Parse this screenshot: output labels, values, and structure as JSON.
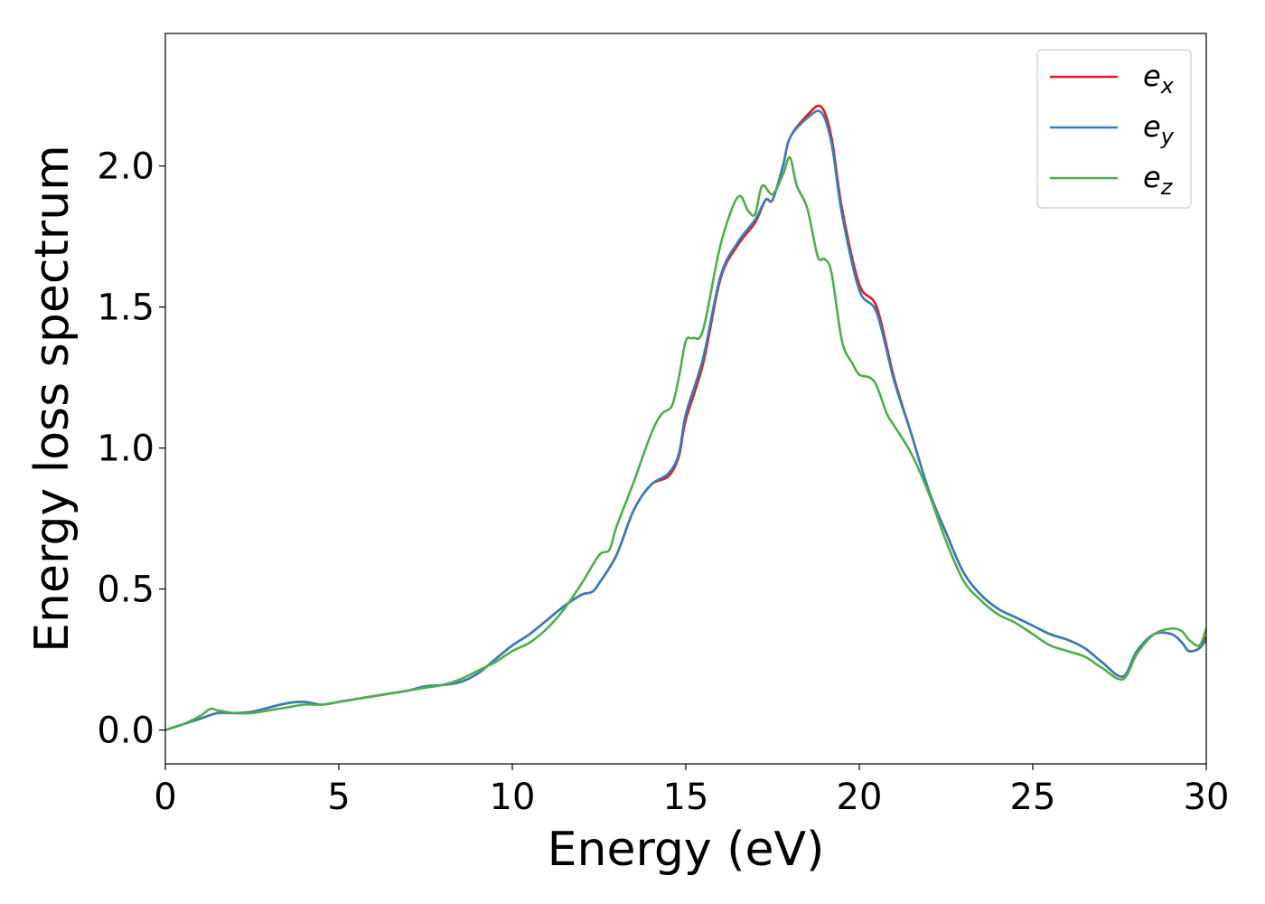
{
  "chart_data": {
    "type": "line",
    "title": "",
    "xlabel": "Energy (eV)",
    "ylabel": "Energy loss spectrum",
    "xlim": [
      0,
      30
    ],
    "ylim": [
      -0.12,
      2.47
    ],
    "xticks": [
      0,
      5,
      10,
      15,
      20,
      25,
      30
    ],
    "yticks": [
      0.0,
      0.5,
      1.0,
      1.5,
      2.0
    ],
    "xtick_labels": [
      "0",
      "5",
      "10",
      "15",
      "20",
      "25",
      "30"
    ],
    "ytick_labels": [
      "0.0",
      "0.5",
      "1.0",
      "1.5",
      "2.0"
    ],
    "grid": false,
    "legend_position": "top-right",
    "series": [
      {
        "name": "e_x",
        "label_base": "e",
        "label_sub": "x",
        "color": "#e41a1c",
        "x": [
          0,
          0.5,
          1.0,
          1.5,
          2.0,
          2.5,
          3.0,
          3.5,
          4.0,
          4.5,
          5.0,
          5.5,
          6.0,
          6.5,
          7.0,
          7.5,
          8.0,
          8.5,
          9.0,
          9.5,
          10.0,
          10.5,
          11.0,
          11.5,
          12.0,
          12.3,
          12.5,
          13.0,
          13.5,
          14.0,
          14.5,
          14.8,
          15.0,
          15.5,
          16.0,
          16.5,
          17.0,
          17.3,
          17.5,
          17.8,
          18.0,
          18.5,
          18.9,
          19.2,
          19.5,
          20.0,
          20.5,
          21.0,
          21.5,
          22.0,
          22.5,
          23.0,
          23.5,
          24.0,
          24.5,
          25.0,
          25.5,
          26.0,
          26.5,
          27.0,
          27.6,
          28.0,
          28.5,
          29.0,
          29.3,
          29.5,
          29.8,
          30.0
        ],
        "y": [
          0,
          0.02,
          0.04,
          0.06,
          0.06,
          0.065,
          0.08,
          0.095,
          0.1,
          0.09,
          0.1,
          0.11,
          0.12,
          0.13,
          0.14,
          0.155,
          0.16,
          0.17,
          0.2,
          0.25,
          0.3,
          0.34,
          0.39,
          0.44,
          0.48,
          0.49,
          0.52,
          0.62,
          0.78,
          0.87,
          0.9,
          0.97,
          1.1,
          1.3,
          1.6,
          1.72,
          1.8,
          1.88,
          1.88,
          2.0,
          2.1,
          2.18,
          2.21,
          2.1,
          1.85,
          1.58,
          1.5,
          1.25,
          1.05,
          0.85,
          0.7,
          0.56,
          0.48,
          0.43,
          0.4,
          0.37,
          0.34,
          0.32,
          0.29,
          0.24,
          0.19,
          0.28,
          0.34,
          0.34,
          0.31,
          0.28,
          0.29,
          0.33
        ]
      },
      {
        "name": "e_y",
        "label_base": "e",
        "label_sub": "y",
        "color": "#377eb8",
        "x": [
          0,
          0.5,
          1.0,
          1.5,
          2.0,
          2.5,
          3.0,
          3.5,
          4.0,
          4.5,
          5.0,
          5.5,
          6.0,
          6.5,
          7.0,
          7.5,
          8.0,
          8.5,
          9.0,
          9.5,
          10.0,
          10.5,
          11.0,
          11.5,
          12.0,
          12.3,
          12.5,
          13.0,
          13.5,
          14.0,
          14.5,
          14.8,
          15.0,
          15.5,
          16.0,
          16.5,
          17.0,
          17.3,
          17.5,
          17.8,
          18.0,
          18.5,
          18.9,
          19.2,
          19.5,
          20.0,
          20.5,
          21.0,
          21.5,
          22.0,
          22.5,
          23.0,
          23.5,
          24.0,
          24.5,
          25.0,
          25.5,
          26.0,
          26.5,
          27.0,
          27.6,
          28.0,
          28.5,
          29.0,
          29.3,
          29.5,
          29.8,
          30.0
        ],
        "y": [
          0,
          0.02,
          0.04,
          0.06,
          0.06,
          0.065,
          0.08,
          0.095,
          0.1,
          0.09,
          0.1,
          0.11,
          0.12,
          0.13,
          0.14,
          0.155,
          0.16,
          0.17,
          0.2,
          0.25,
          0.3,
          0.34,
          0.39,
          0.44,
          0.48,
          0.49,
          0.52,
          0.62,
          0.78,
          0.87,
          0.91,
          0.98,
          1.12,
          1.32,
          1.61,
          1.73,
          1.81,
          1.88,
          1.88,
          2.0,
          2.1,
          2.17,
          2.19,
          2.08,
          1.83,
          1.56,
          1.48,
          1.24,
          1.05,
          0.85,
          0.7,
          0.56,
          0.48,
          0.43,
          0.4,
          0.37,
          0.34,
          0.32,
          0.29,
          0.24,
          0.19,
          0.28,
          0.34,
          0.34,
          0.31,
          0.28,
          0.29,
          0.32
        ]
      },
      {
        "name": "e_z",
        "label_base": "e",
        "label_sub": "z",
        "color": "#4daf4a",
        "x": [
          0,
          0.5,
          1.0,
          1.3,
          1.5,
          2.0,
          2.5,
          3.0,
          3.5,
          4.0,
          4.5,
          5.0,
          5.5,
          6.0,
          6.5,
          7.0,
          7.5,
          8.0,
          8.5,
          9.0,
          9.5,
          10.0,
          10.5,
          11.0,
          11.5,
          12.0,
          12.5,
          12.8,
          13.0,
          13.5,
          14.0,
          14.3,
          14.6,
          14.8,
          15.0,
          15.2,
          15.5,
          16.0,
          16.5,
          16.8,
          17.0,
          17.2,
          17.5,
          17.8,
          18.0,
          18.2,
          18.5,
          18.8,
          19.0,
          19.2,
          19.5,
          19.8,
          20.0,
          20.3,
          20.5,
          20.8,
          21.0,
          21.5,
          22.0,
          22.5,
          23.0,
          23.5,
          24.0,
          24.5,
          25.0,
          25.5,
          26.0,
          26.5,
          27.0,
          27.6,
          28.0,
          28.5,
          29.0,
          29.3,
          29.5,
          29.8,
          30.0
        ],
        "y": [
          0,
          0.02,
          0.05,
          0.075,
          0.07,
          0.06,
          0.06,
          0.07,
          0.08,
          0.09,
          0.09,
          0.1,
          0.11,
          0.12,
          0.13,
          0.14,
          0.15,
          0.16,
          0.18,
          0.21,
          0.24,
          0.28,
          0.31,
          0.36,
          0.43,
          0.52,
          0.62,
          0.64,
          0.72,
          0.88,
          1.05,
          1.12,
          1.15,
          1.25,
          1.38,
          1.39,
          1.42,
          1.72,
          1.89,
          1.84,
          1.83,
          1.93,
          1.9,
          1.97,
          2.03,
          1.93,
          1.85,
          1.68,
          1.67,
          1.62,
          1.38,
          1.3,
          1.26,
          1.25,
          1.22,
          1.12,
          1.08,
          0.98,
          0.84,
          0.67,
          0.53,
          0.46,
          0.41,
          0.38,
          0.34,
          0.3,
          0.28,
          0.26,
          0.22,
          0.18,
          0.27,
          0.34,
          0.36,
          0.35,
          0.32,
          0.3,
          0.36
        ]
      }
    ]
  }
}
